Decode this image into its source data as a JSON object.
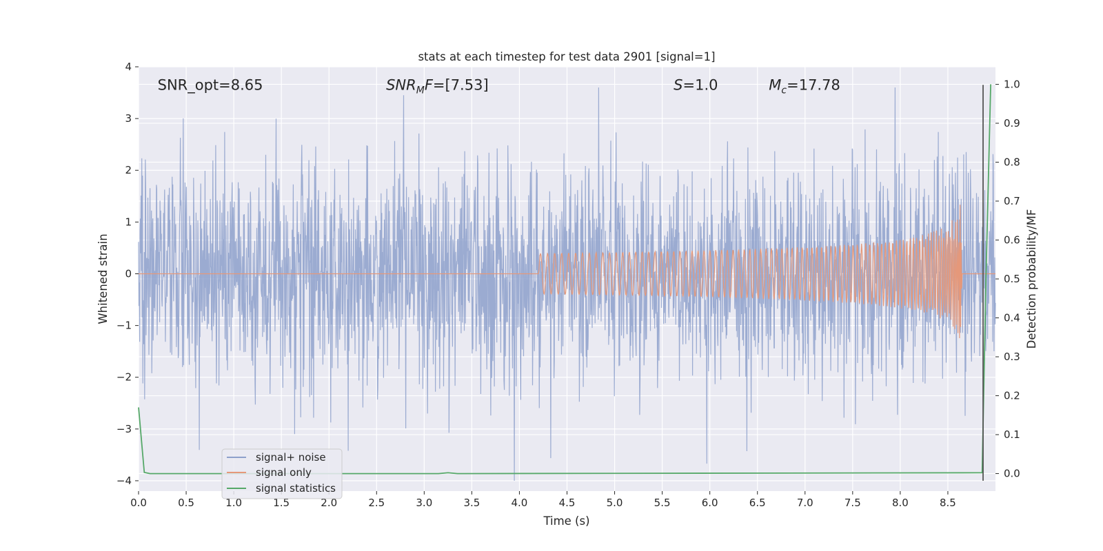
{
  "chart_data": {
    "type": "line",
    "title": "stats at each timestep for test data 2901 [signal=1]",
    "xlabel": "Time (s)",
    "ylabel": "Whitened strain",
    "y2label": "Detection probability/MF",
    "xlim": [
      0.0,
      9.0
    ],
    "ylim": [
      -4.2,
      4.0
    ],
    "y2lim": [
      -0.045,
      1.045
    ],
    "xticks": [
      0.0,
      0.5,
      1.0,
      1.5,
      2.0,
      2.5,
      3.0,
      3.5,
      4.0,
      4.5,
      5.0,
      5.5,
      6.0,
      6.5,
      7.0,
      7.5,
      8.0,
      8.5
    ],
    "yticks": [
      -4,
      -3,
      -2,
      -1,
      0,
      1,
      2,
      3,
      4
    ],
    "y2ticks": [
      0.0,
      0.1,
      0.2,
      0.3,
      0.4,
      0.5,
      0.6,
      0.7,
      0.8,
      0.9,
      1.0
    ],
    "grid": true,
    "legend_position": "lower-left",
    "annotations": [
      {
        "id": "snr-opt",
        "text": "SNR_opt=8.65",
        "x": 0.2,
        "y": 3.65
      },
      {
        "id": "snr-mf",
        "text": "SNR_MF=[7.53]",
        "x": 2.6,
        "y": 3.65
      },
      {
        "id": "stat-s",
        "text": "S=1.0",
        "x": 5.62,
        "y": 3.65
      },
      {
        "id": "chirp-mass",
        "text": "M_c=17.78",
        "x": 6.62,
        "y": 3.65
      }
    ],
    "vertical_marker": {
      "x": 8.87,
      "y_from": -4.0,
      "y_to": 3.65,
      "color": "#555555"
    },
    "series": [
      {
        "name": "signal+ noise",
        "color": "#8da0cb",
        "axis": "left",
        "description_range": {
          "x_start": 0.0,
          "x_end": 9.0,
          "envelope_min": -4.0,
          "envelope_max": 3.6
        }
      },
      {
        "name": "signal only",
        "color": "#e5987a",
        "axis": "left",
        "chirp": {
          "start_x": 4.2,
          "end_x": 8.65,
          "start_amp": 0.02,
          "end_amp": 1.6
        }
      },
      {
        "name": "signal statistics",
        "color": "#55a868",
        "axis": "right",
        "x": [
          0.0,
          0.06,
          0.12,
          3.15,
          3.25,
          3.35,
          8.86,
          8.9,
          8.95
        ],
        "values": [
          0.17,
          0.003,
          0.0,
          0.0,
          0.002,
          0.0,
          0.002,
          0.5,
          1.0
        ]
      }
    ]
  },
  "legend": {
    "items": [
      {
        "label": "signal+ noise",
        "color": "#8da0cb"
      },
      {
        "label": "signal only",
        "color": "#e5987a"
      },
      {
        "label": "signal statistics",
        "color": "#55a868"
      }
    ]
  },
  "colors": {
    "plot_background": "#eaeaf2",
    "grid": "#ffffff",
    "text": "#262626"
  }
}
